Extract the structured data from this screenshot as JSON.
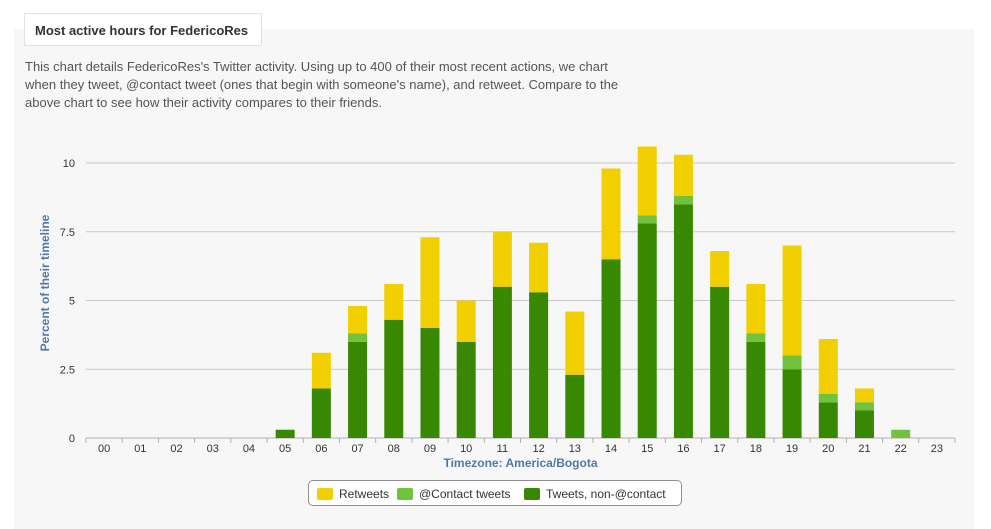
{
  "panel": {
    "title": "Most active hours for FedericoRes",
    "description": "This chart details FedericoRes's Twitter activity. Using up to 400 of their most recent actions, we chart when they tweet, @contact tweet (ones that begin with someone's name), and retweet. Compare to the above chart to see how their activity compares to their friends."
  },
  "colors": {
    "retweets": "#f2cf00",
    "contact": "#72c23d",
    "tweets": "#388803",
    "grid": "#c8c8c8",
    "axis_label": "#4f7aa8"
  },
  "chart_data": {
    "type": "bar",
    "stacked": true,
    "categories": [
      "00",
      "01",
      "02",
      "03",
      "04",
      "05",
      "06",
      "07",
      "08",
      "09",
      "10",
      "11",
      "12",
      "13",
      "14",
      "15",
      "16",
      "17",
      "18",
      "19",
      "20",
      "21",
      "22",
      "23"
    ],
    "series": [
      {
        "name": "Tweets, non-@contact",
        "values": [
          0,
          0,
          0,
          0,
          0,
          0.3,
          1.8,
          3.5,
          4.3,
          4.0,
          3.5,
          5.5,
          5.3,
          2.3,
          6.5,
          7.8,
          8.5,
          5.5,
          3.5,
          2.5,
          1.3,
          1.0,
          0,
          0
        ]
      },
      {
        "name": "@Contact tweets",
        "values": [
          0,
          0,
          0,
          0,
          0,
          0,
          0,
          0.3,
          0,
          0,
          0,
          0,
          0,
          0,
          0,
          0.3,
          0.3,
          0,
          0.3,
          0.5,
          0.3,
          0.3,
          0.3,
          0
        ]
      },
      {
        "name": "Retweets",
        "values": [
          0,
          0,
          0,
          0,
          0,
          0,
          1.3,
          1.0,
          1.3,
          3.3,
          1.5,
          2.0,
          1.8,
          2.3,
          3.3,
          2.5,
          1.5,
          1.3,
          1.8,
          4.0,
          2.0,
          0.5,
          0,
          0
        ]
      }
    ],
    "xlabel": "Timezone: America/Bogota",
    "ylabel": "Percent of their timeline",
    "ylim": [
      0,
      10.5
    ],
    "yticks": [
      0,
      2.5,
      5,
      7.5,
      10
    ],
    "ytick_labels": [
      "0",
      "2.5",
      "5",
      "7.5",
      "10"
    ],
    "grid": true,
    "legend_position": "bottom"
  },
  "legend": {
    "items": [
      {
        "label": "Retweets",
        "color": "#f2cf00"
      },
      {
        "label": "@Contact tweets",
        "color": "#72c23d"
      },
      {
        "label": "Tweets, non-@contact",
        "color": "#388803"
      }
    ]
  }
}
